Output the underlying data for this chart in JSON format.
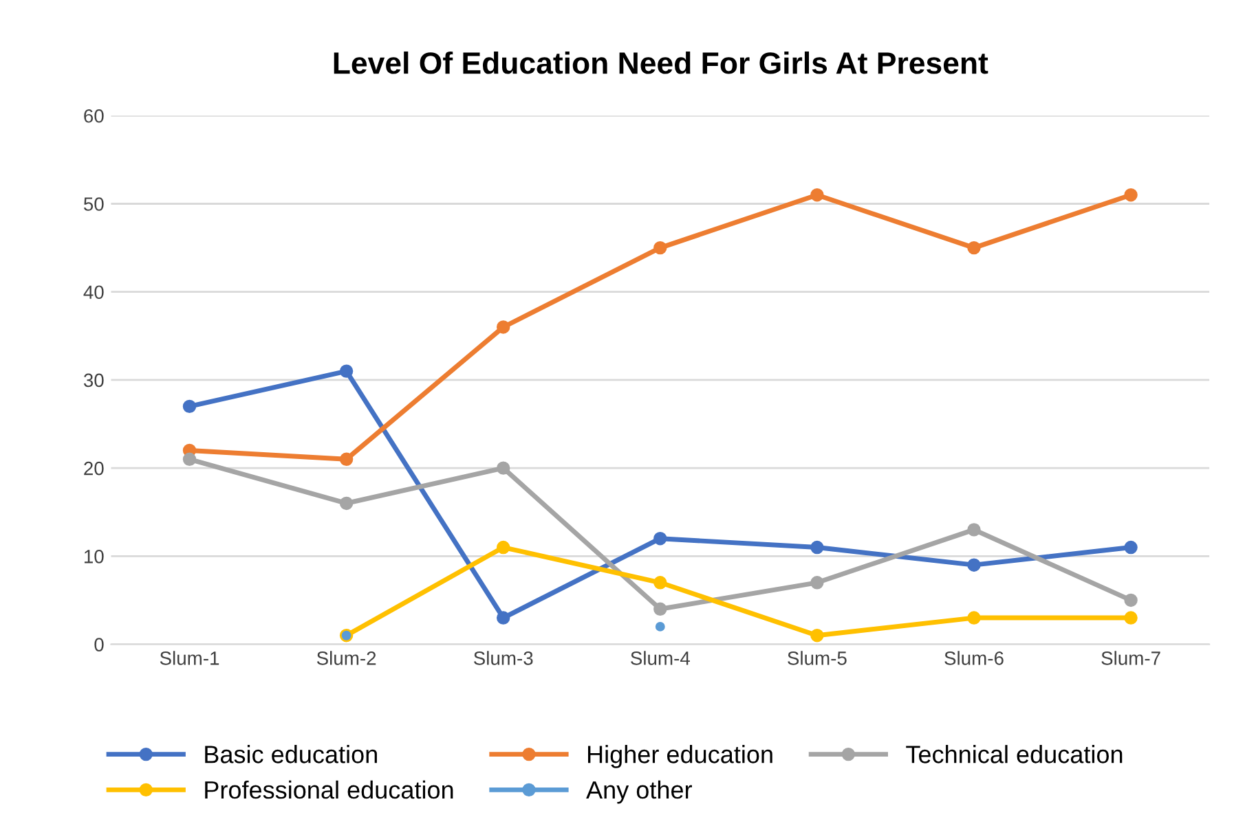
{
  "chart_data": {
    "type": "line",
    "title": "Level Of Education Need For Girls At Present",
    "categories": [
      "Slum-1",
      "Slum-2",
      "Slum-3",
      "Slum-4",
      "Slum-5",
      "Slum-6",
      "Slum-7"
    ],
    "series": [
      {
        "name": "Basic education",
        "color": "#4472c4",
        "values": [
          27,
          31,
          3,
          12,
          11,
          9,
          11
        ]
      },
      {
        "name": "Higher education",
        "color": "#ed7d31",
        "values": [
          22,
          21,
          36,
          45,
          51,
          45,
          51
        ]
      },
      {
        "name": "Technical education",
        "color": "#a5a5a5",
        "values": [
          21,
          16,
          20,
          4,
          7,
          13,
          5
        ]
      },
      {
        "name": "Professional education",
        "color": "#ffc000",
        "values": [
          null,
          1,
          11,
          7,
          1,
          3,
          3
        ]
      },
      {
        "name": "Any other",
        "type": "scatter",
        "color": "#5b9bd5",
        "values": [
          null,
          1,
          null,
          2,
          null,
          null,
          null
        ]
      }
    ],
    "ylim": [
      0,
      60
    ],
    "yticks": [
      0,
      10,
      20,
      30,
      40,
      50,
      60
    ],
    "grid": "y",
    "legend": "bottom",
    "marker": "circle",
    "line_style": "solid"
  }
}
